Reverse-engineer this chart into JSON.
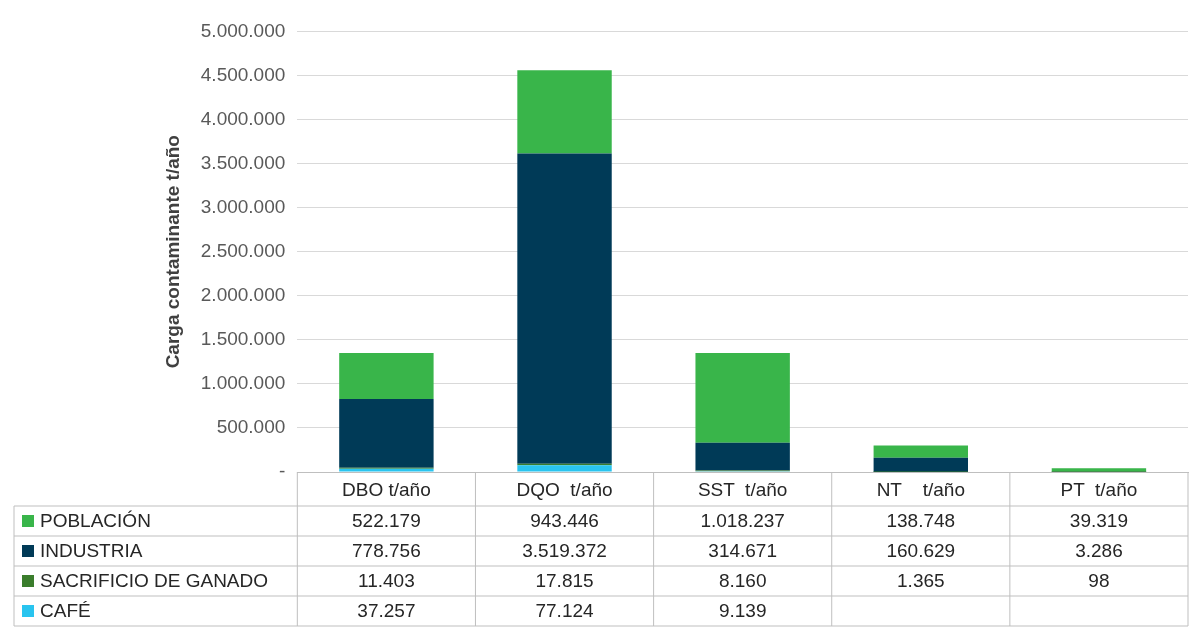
{
  "chart_data": {
    "type": "bar",
    "stacked": true,
    "ylabel": "Carga contaminante t/año",
    "categories": [
      "DBO t/año",
      "DQO  t/año",
      "SST  t/año",
      "NT    t/año",
      "PT  t/año"
    ],
    "series": [
      {
        "name": "CAFÉ",
        "color": "#29c4ef",
        "values": [
          37257,
          77124,
          9139,
          null,
          null
        ],
        "value_labels": [
          "37.257",
          "77.124",
          "9.139",
          null,
          null
        ]
      },
      {
        "name": "SACRIFICIO DE GANADO",
        "color": "#3a7d2c",
        "values": [
          11403,
          17815,
          8160,
          1365,
          98
        ],
        "value_labels": [
          "11.403",
          "17.815",
          "8.160",
          "1.365",
          "98"
        ]
      },
      {
        "name": "INDUSTRIA",
        "color": "#003a57",
        "values": [
          778756,
          3519372,
          314671,
          160629,
          3286
        ],
        "value_labels": [
          "778.756",
          "3.519.372",
          "314.671",
          "160.629",
          "3.286"
        ]
      },
      {
        "name": "POBLACIÓN",
        "color": "#39b54a",
        "values": [
          522179,
          943446,
          1018237,
          138748,
          39319
        ],
        "value_labels": [
          "522.179",
          "943.446",
          "1.018.237",
          "138.748",
          "39.319"
        ]
      }
    ],
    "ylim": [
      0,
      5000000
    ],
    "yticks": [
      {
        "value": 0,
        "label": "-"
      },
      {
        "value": 500000,
        "label": "500.000"
      },
      {
        "value": 1000000,
        "label": "1.000.000"
      },
      {
        "value": 1500000,
        "label": "1.500.000"
      },
      {
        "value": 2000000,
        "label": "2.000.000"
      },
      {
        "value": 2500000,
        "label": "2.500.000"
      },
      {
        "value": 3000000,
        "label": "3.000.000"
      },
      {
        "value": 3500000,
        "label": "3.500.000"
      },
      {
        "value": 4000000,
        "label": "4.000.000"
      },
      {
        "value": 4500000,
        "label": "4.500.000"
      },
      {
        "value": 5000000,
        "label": "5.000.000"
      }
    ],
    "grid": "y",
    "legend": "bottom"
  }
}
